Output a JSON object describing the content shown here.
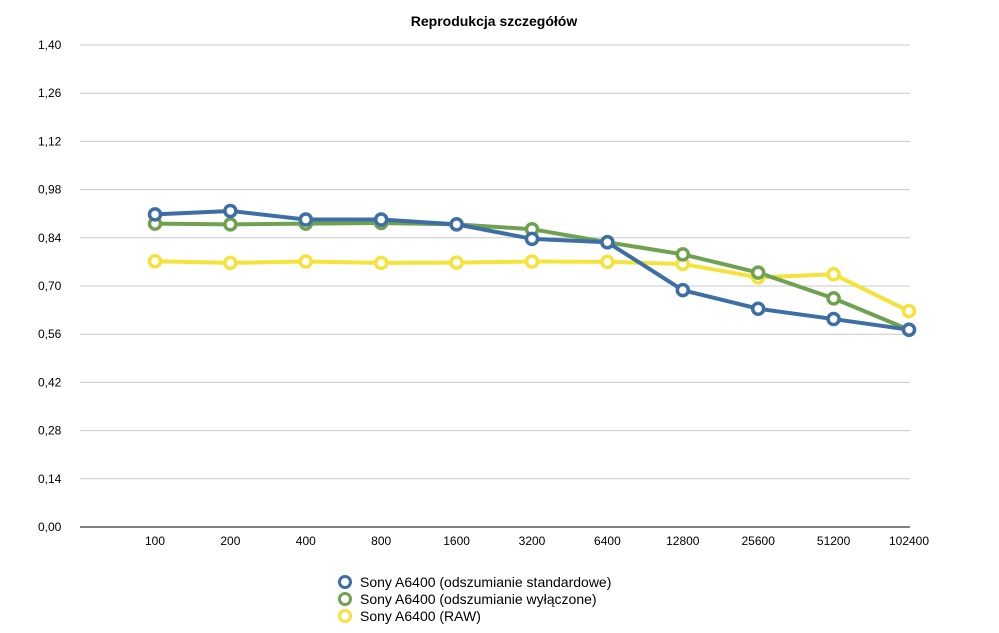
{
  "chart_data": {
    "type": "line",
    "title": "Reprodukcja szczegółów",
    "xlabel": "",
    "ylabel": "",
    "categories": [
      "100",
      "200",
      "400",
      "800",
      "1600",
      "3200",
      "6400",
      "12800",
      "25600",
      "51200",
      "102400"
    ],
    "y_ticks": [
      "0,00",
      "0,14",
      "0,28",
      "0,42",
      "0,56",
      "0,70",
      "0,84",
      "0,98",
      "1,12",
      "1,26",
      "1,40"
    ],
    "ylim": [
      0,
      1.4
    ],
    "grid": true,
    "legend_position": "bottom",
    "series": [
      {
        "name": "Sony A6400 (odszumianie standardowe)",
        "color": "#3d6ea5",
        "values": [
          0.908,
          0.918,
          0.893,
          0.893,
          0.879,
          0.837,
          0.827,
          0.688,
          0.634,
          0.604,
          0.573
        ]
      },
      {
        "name": "Sony A6400 (odszumianie wyłączone)",
        "color": "#6fa250",
        "values": [
          0.881,
          0.879,
          0.881,
          0.883,
          0.879,
          0.865,
          0.827,
          0.792,
          0.739,
          0.664,
          0.573
        ]
      },
      {
        "name": "Sony A6400 (RAW)",
        "color": "#f5e23a",
        "values": [
          0.772,
          0.767,
          0.771,
          0.767,
          0.768,
          0.771,
          0.77,
          0.764,
          0.725,
          0.734,
          0.627
        ]
      }
    ]
  }
}
